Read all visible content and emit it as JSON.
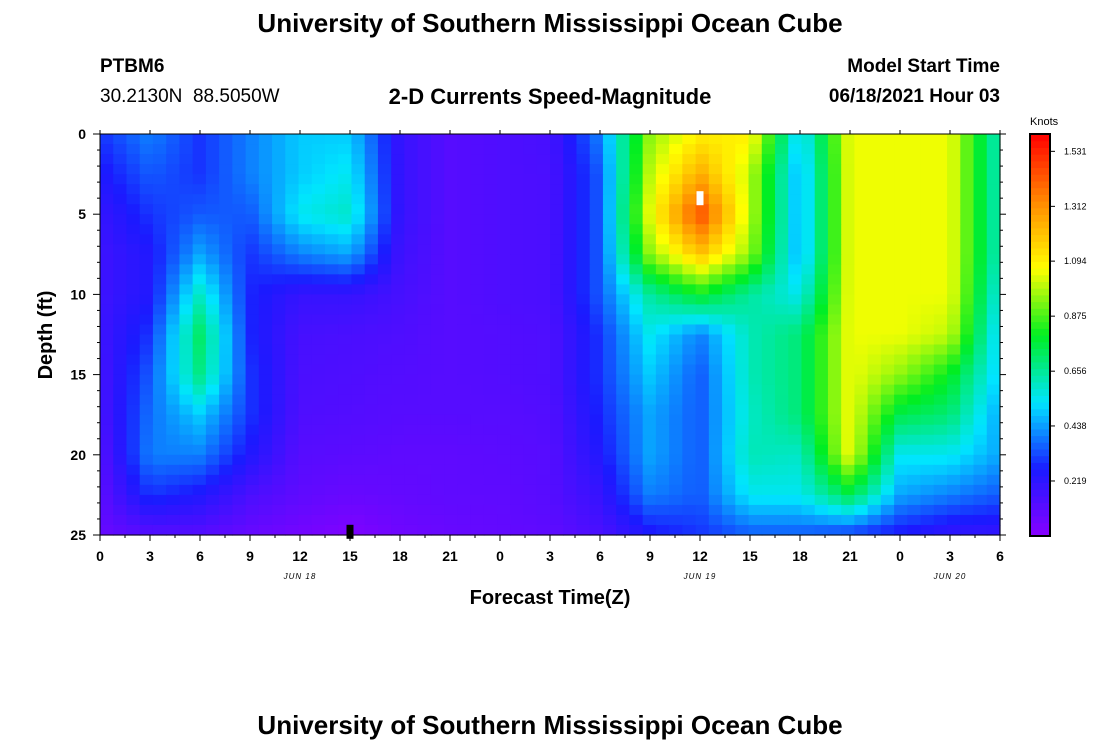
{
  "page": {
    "title_top": "University of Southern Mississippi Ocean Cube",
    "title_bottom": "University of Southern Mississippi Ocean Cube",
    "station": {
      "id": "PTBM6",
      "coords": "30.2130N  88.5050W"
    },
    "plot_title": "2-D Currents Speed-Magnitude",
    "model_start": {
      "label": "Model Start Time",
      "value": "06/18/2021 Hour 03"
    }
  },
  "chart_data": {
    "type": "heatmap",
    "title": "2-D Currents Speed-Magnitude",
    "xlabel": "Forecast Time(Z)",
    "ylabel": "Depth (ft)",
    "x_ticks": [
      "0",
      "3",
      "6",
      "9",
      "12",
      "15",
      "18",
      "21",
      "0",
      "3",
      "6",
      "9",
      "12",
      "15",
      "18",
      "21",
      "0",
      "3",
      "6"
    ],
    "x_range_hours": [
      0,
      54
    ],
    "date_labels": [
      {
        "text": "JUN 18",
        "hour": 12
      },
      {
        "text": "JUN 19",
        "hour": 36
      },
      {
        "text": "JUN 20",
        "hour": 51
      }
    ],
    "y_ticks": [
      "0",
      "5",
      "10",
      "15",
      "20",
      "25"
    ],
    "y_range_ft": [
      0,
      25
    ],
    "colorbar": {
      "label": "Knots",
      "ticks": [
        "1.531",
        "1.312",
        "1.094",
        "0.875",
        "0.656",
        "0.438",
        "0.219"
      ],
      "range": [
        0,
        1.6
      ],
      "colors": [
        "#8800ff",
        "#1a1aff",
        "#00e5ff",
        "#00ee22",
        "#ffff00",
        "#ff8800",
        "#ff0000"
      ]
    },
    "markers": [
      {
        "type": "max",
        "hour": 36,
        "depth_ft": 4,
        "color": "#ffffff"
      },
      {
        "type": "min",
        "hour": 15,
        "depth_ft": 24.8,
        "color": "#000000"
      }
    ],
    "hours": [
      0,
      3,
      6,
      9,
      12,
      15,
      18,
      21,
      24,
      27,
      30,
      33,
      36,
      39,
      42,
      45,
      48,
      51,
      54
    ],
    "depths_ft": [
      0,
      2.5,
      5,
      7.5,
      10,
      12.5,
      15,
      17.5,
      20,
      22.5,
      25
    ],
    "speeds": [
      [
        0.3,
        0.4,
        0.3,
        0.4,
        0.5,
        0.5,
        0.2,
        0.12,
        0.14,
        0.16,
        0.4,
        0.95,
        1.1,
        1.1,
        0.5,
        1.05,
        1.05,
        1.05,
        0.6
      ],
      [
        0.25,
        0.35,
        0.3,
        0.4,
        0.5,
        0.55,
        0.2,
        0.12,
        0.14,
        0.15,
        0.35,
        1.0,
        1.25,
        1.0,
        0.45,
        1.05,
        1.05,
        1.05,
        0.6
      ],
      [
        0.2,
        0.3,
        0.35,
        0.35,
        0.55,
        0.6,
        0.2,
        0.12,
        0.14,
        0.15,
        0.35,
        1.05,
        1.45,
        1.0,
        0.45,
        1.05,
        1.05,
        1.05,
        0.6
      ],
      [
        0.18,
        0.25,
        0.45,
        0.3,
        0.4,
        0.45,
        0.18,
        0.12,
        0.14,
        0.15,
        0.35,
        0.95,
        1.2,
        0.95,
        0.45,
        1.05,
        1.05,
        1.05,
        0.6
      ],
      [
        0.18,
        0.25,
        0.6,
        0.28,
        0.2,
        0.2,
        0.16,
        0.12,
        0.14,
        0.15,
        0.35,
        0.65,
        0.8,
        0.65,
        0.55,
        1.05,
        1.05,
        1.05,
        0.55
      ],
      [
        0.18,
        0.3,
        0.72,
        0.28,
        0.16,
        0.15,
        0.14,
        0.12,
        0.13,
        0.14,
        0.3,
        0.55,
        0.4,
        0.62,
        0.7,
        1.05,
        1.05,
        1.0,
        0.5
      ],
      [
        0.16,
        0.35,
        0.68,
        0.3,
        0.15,
        0.14,
        0.13,
        0.12,
        0.13,
        0.14,
        0.3,
        0.5,
        0.35,
        0.62,
        0.7,
        1.05,
        0.95,
        0.8,
        0.5
      ],
      [
        0.15,
        0.38,
        0.5,
        0.3,
        0.14,
        0.13,
        0.12,
        0.12,
        0.12,
        0.13,
        0.28,
        0.45,
        0.35,
        0.6,
        0.7,
        1.05,
        0.75,
        0.7,
        0.45
      ],
      [
        0.12,
        0.4,
        0.4,
        0.25,
        0.12,
        0.11,
        0.1,
        0.1,
        0.11,
        0.12,
        0.25,
        0.45,
        0.35,
        0.62,
        0.6,
        1.05,
        0.55,
        0.55,
        0.45
      ],
      [
        0.1,
        0.3,
        0.25,
        0.15,
        0.1,
        0.08,
        0.09,
        0.1,
        0.1,
        0.12,
        0.2,
        0.4,
        0.35,
        0.55,
        0.55,
        0.75,
        0.45,
        0.4,
        0.35
      ],
      [
        0.08,
        0.12,
        0.12,
        0.08,
        0.05,
        0.02,
        0.06,
        0.08,
        0.09,
        0.1,
        0.15,
        0.25,
        0.3,
        0.35,
        0.35,
        0.3,
        0.25,
        0.2,
        0.2
      ]
    ]
  }
}
